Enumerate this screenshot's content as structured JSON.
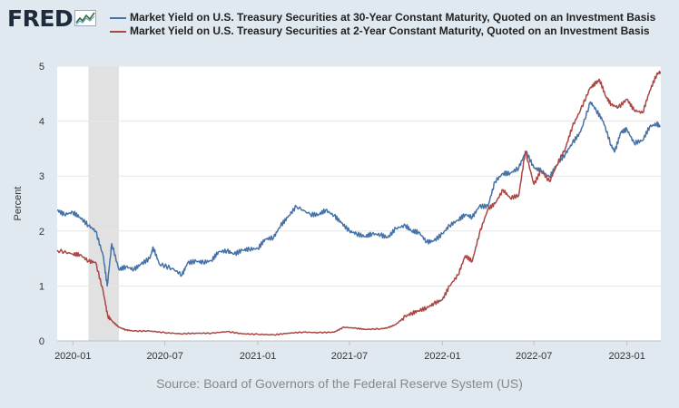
{
  "logo": {
    "text": "FRED",
    "icon": "fred-graph-icon"
  },
  "source_text": "Source: Board of Governors of the Federal Reserve System (US)",
  "chart_data": {
    "type": "line",
    "title": "",
    "xlabel": "",
    "ylabel": "Percent",
    "ylim": [
      0,
      5
    ],
    "yticks": [
      "0",
      "1",
      "2",
      "3",
      "4",
      "5"
    ],
    "xticks": [
      "2020-01",
      "2020-07",
      "2021-01",
      "2021-07",
      "2022-01",
      "2022-07",
      "2023-01"
    ],
    "grid": "horizontal",
    "recession_shading": {
      "from": "2020-02",
      "to": "2020-04",
      "color": "#e1e1e1"
    },
    "colors": {
      "series1": "#4572a7",
      "series2": "#aa4643",
      "background": "#e1e9f0",
      "plot": "#ffffff"
    },
    "series": [
      {
        "name": "Market Yield on U.S. Treasury Securities at 30-Year Constant Maturity, Quoted on an Investment Basis",
        "color": "#4572a7",
        "points": [
          [
            "2019-12-01",
            2.38
          ],
          [
            "2019-12-15",
            2.3
          ],
          [
            "2020-01-01",
            2.34
          ],
          [
            "2020-01-15",
            2.25
          ],
          [
            "2020-02-01",
            2.1
          ],
          [
            "2020-02-15",
            2.0
          ],
          [
            "2020-03-01",
            1.55
          ],
          [
            "2020-03-09",
            1.0
          ],
          [
            "2020-03-18",
            1.77
          ],
          [
            "2020-04-01",
            1.3
          ],
          [
            "2020-04-15",
            1.35
          ],
          [
            "2020-05-01",
            1.3
          ],
          [
            "2020-05-15",
            1.4
          ],
          [
            "2020-06-01",
            1.5
          ],
          [
            "2020-06-08",
            1.7
          ],
          [
            "2020-06-20",
            1.4
          ],
          [
            "2020-07-15",
            1.32
          ],
          [
            "2020-08-04",
            1.2
          ],
          [
            "2020-08-15",
            1.42
          ],
          [
            "2020-09-01",
            1.45
          ],
          [
            "2020-09-15",
            1.43
          ],
          [
            "2020-10-01",
            1.46
          ],
          [
            "2020-10-15",
            1.62
          ],
          [
            "2020-11-01",
            1.64
          ],
          [
            "2020-11-15",
            1.58
          ],
          [
            "2020-12-01",
            1.65
          ],
          [
            "2020-12-15",
            1.67
          ],
          [
            "2021-01-01",
            1.68
          ],
          [
            "2021-01-15",
            1.85
          ],
          [
            "2021-02-01",
            1.88
          ],
          [
            "2021-02-15",
            2.1
          ],
          [
            "2021-03-01",
            2.25
          ],
          [
            "2021-03-18",
            2.45
          ],
          [
            "2021-04-15",
            2.3
          ],
          [
            "2021-05-01",
            2.3
          ],
          [
            "2021-05-15",
            2.38
          ],
          [
            "2021-06-01",
            2.28
          ],
          [
            "2021-06-15",
            2.15
          ],
          [
            "2021-07-01",
            2.0
          ],
          [
            "2021-07-15",
            1.95
          ],
          [
            "2021-08-01",
            1.9
          ],
          [
            "2021-08-15",
            1.95
          ],
          [
            "2021-09-01",
            1.93
          ],
          [
            "2021-09-15",
            1.88
          ],
          [
            "2021-10-01",
            2.05
          ],
          [
            "2021-10-20",
            2.1
          ],
          [
            "2021-11-01",
            2.0
          ],
          [
            "2021-11-15",
            1.98
          ],
          [
            "2021-12-01",
            1.8
          ],
          [
            "2021-12-15",
            1.82
          ],
          [
            "2022-01-01",
            1.95
          ],
          [
            "2022-01-15",
            2.1
          ],
          [
            "2022-02-01",
            2.2
          ],
          [
            "2022-02-15",
            2.3
          ],
          [
            "2022-03-01",
            2.25
          ],
          [
            "2022-03-15",
            2.45
          ],
          [
            "2022-04-01",
            2.45
          ],
          [
            "2022-04-15",
            2.9
          ],
          [
            "2022-05-01",
            3.05
          ],
          [
            "2022-05-15",
            3.05
          ],
          [
            "2022-06-01",
            3.15
          ],
          [
            "2022-06-15",
            3.45
          ],
          [
            "2022-07-01",
            3.15
          ],
          [
            "2022-07-15",
            3.1
          ],
          [
            "2022-08-01",
            2.98
          ],
          [
            "2022-08-15",
            3.2
          ],
          [
            "2022-09-01",
            3.4
          ],
          [
            "2022-09-15",
            3.6
          ],
          [
            "2022-10-01",
            3.8
          ],
          [
            "2022-10-21",
            4.35
          ],
          [
            "2022-11-01",
            4.2
          ],
          [
            "2022-11-15",
            4.0
          ],
          [
            "2022-12-01",
            3.55
          ],
          [
            "2022-12-08",
            3.45
          ],
          [
            "2022-12-20",
            3.8
          ],
          [
            "2023-01-01",
            3.85
          ],
          [
            "2023-01-15",
            3.6
          ],
          [
            "2023-02-01",
            3.65
          ],
          [
            "2023-02-15",
            3.9
          ],
          [
            "2023-03-01",
            3.95
          ],
          [
            "2023-03-08",
            3.9
          ]
        ]
      },
      {
        "name": "Market Yield on U.S. Treasury Securities at 2-Year Constant Maturity, Quoted on an Investment Basis",
        "color": "#aa4643",
        "points": [
          [
            "2019-12-01",
            1.65
          ],
          [
            "2020-01-01",
            1.58
          ],
          [
            "2020-01-15",
            1.57
          ],
          [
            "2020-02-01",
            1.45
          ],
          [
            "2020-02-15",
            1.43
          ],
          [
            "2020-03-01",
            0.9
          ],
          [
            "2020-03-10",
            0.45
          ],
          [
            "2020-03-20",
            0.35
          ],
          [
            "2020-04-01",
            0.25
          ],
          [
            "2020-04-15",
            0.2
          ],
          [
            "2020-05-01",
            0.18
          ],
          [
            "2020-06-01",
            0.18
          ],
          [
            "2020-07-01",
            0.15
          ],
          [
            "2020-08-01",
            0.13
          ],
          [
            "2020-09-01",
            0.14
          ],
          [
            "2020-10-01",
            0.14
          ],
          [
            "2020-11-01",
            0.17
          ],
          [
            "2020-12-01",
            0.13
          ],
          [
            "2021-01-01",
            0.12
          ],
          [
            "2021-02-01",
            0.11
          ],
          [
            "2021-03-01",
            0.14
          ],
          [
            "2021-04-01",
            0.16
          ],
          [
            "2021-05-01",
            0.15
          ],
          [
            "2021-06-01",
            0.16
          ],
          [
            "2021-06-20",
            0.25
          ],
          [
            "2021-07-15",
            0.23
          ],
          [
            "2021-08-01",
            0.21
          ],
          [
            "2021-09-01",
            0.22
          ],
          [
            "2021-09-15",
            0.24
          ],
          [
            "2021-10-01",
            0.3
          ],
          [
            "2021-10-20",
            0.45
          ],
          [
            "2021-11-01",
            0.5
          ],
          [
            "2021-11-15",
            0.55
          ],
          [
            "2021-12-01",
            0.6
          ],
          [
            "2021-12-15",
            0.68
          ],
          [
            "2022-01-01",
            0.75
          ],
          [
            "2022-01-15",
            1.0
          ],
          [
            "2022-02-01",
            1.2
          ],
          [
            "2022-02-15",
            1.55
          ],
          [
            "2022-03-01",
            1.45
          ],
          [
            "2022-03-15",
            1.95
          ],
          [
            "2022-04-01",
            2.4
          ],
          [
            "2022-04-15",
            2.5
          ],
          [
            "2022-05-01",
            2.75
          ],
          [
            "2022-05-15",
            2.6
          ],
          [
            "2022-06-01",
            2.65
          ],
          [
            "2022-06-14",
            3.45
          ],
          [
            "2022-07-01",
            2.85
          ],
          [
            "2022-07-15",
            3.1
          ],
          [
            "2022-08-01",
            2.9
          ],
          [
            "2022-08-15",
            3.2
          ],
          [
            "2022-09-01",
            3.5
          ],
          [
            "2022-09-15",
            3.9
          ],
          [
            "2022-10-01",
            4.2
          ],
          [
            "2022-10-20",
            4.6
          ],
          [
            "2022-11-01",
            4.7
          ],
          [
            "2022-11-08",
            4.75
          ],
          [
            "2022-11-20",
            4.45
          ],
          [
            "2022-12-01",
            4.3
          ],
          [
            "2022-12-15",
            4.25
          ],
          [
            "2023-01-01",
            4.4
          ],
          [
            "2023-01-15",
            4.2
          ],
          [
            "2023-02-01",
            4.15
          ],
          [
            "2023-02-15",
            4.55
          ],
          [
            "2023-03-01",
            4.85
          ],
          [
            "2023-03-08",
            4.9
          ]
        ]
      }
    ]
  }
}
